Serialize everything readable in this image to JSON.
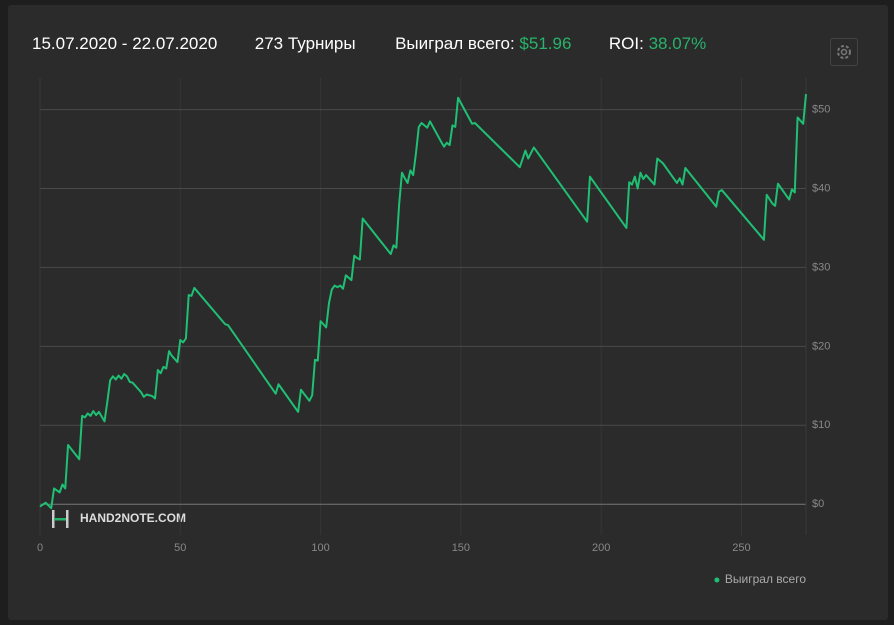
{
  "header": {
    "date_range": "15.07.2020 - 22.07.2020",
    "tournaments": "273 Турниры",
    "won_label": "Выиграл всего:",
    "won_value": "$51.96",
    "roi_label": "ROI:",
    "roi_value": "38.07%"
  },
  "watermark": "HAND2NOTE.COM",
  "chart_data": {
    "type": "line",
    "grid": true,
    "legend": "bottom-right",
    "xlim": [
      0,
      273
    ],
    "xticks": [
      0,
      50,
      100,
      150,
      200,
      250
    ],
    "ylim": [
      -3.9,
      54
    ],
    "yticks": [
      {
        "value": 0,
        "label": "$0"
      },
      {
        "value": 10,
        "label": "$10"
      },
      {
        "value": 20,
        "label": "$20"
      },
      {
        "value": 30,
        "label": "$30"
      },
      {
        "value": 40,
        "label": "$40"
      },
      {
        "value": 50,
        "label": "$50"
      }
    ],
    "x": [
      0,
      2,
      4,
      5,
      7,
      8,
      9,
      10,
      14,
      15,
      16,
      17,
      18,
      19,
      20,
      21,
      23,
      24,
      25,
      26,
      27,
      28,
      29,
      30,
      31,
      32,
      33,
      36,
      37,
      38,
      40,
      41,
      42,
      43,
      44,
      45,
      46,
      47,
      49,
      50,
      51,
      52,
      53,
      54,
      55,
      66,
      67,
      84,
      85,
      92,
      93,
      96,
      97,
      98,
      99,
      100,
      101,
      102,
      103,
      104,
      105,
      106,
      107,
      108,
      109,
      110,
      111,
      112,
      113,
      114,
      115,
      125,
      126,
      127,
      128,
      129,
      130,
      131,
      132,
      133,
      134,
      135,
      136,
      137,
      138,
      139,
      143,
      144,
      145,
      146,
      147,
      148,
      149,
      154,
      155,
      171,
      173,
      174,
      176,
      195,
      196,
      209,
      210,
      211,
      212,
      213,
      214,
      215,
      216,
      219,
      220,
      222,
      227,
      228,
      229,
      230,
      241,
      242,
      243,
      258,
      259,
      261,
      262,
      263,
      267,
      268,
      269,
      270,
      271,
      272,
      273
    ],
    "series": [
      {
        "name": "Выиграл всего",
        "color": "#1fbf74",
        "values": [
          -0.3,
          0.2,
          -0.5,
          2,
          1.5,
          2.5,
          2,
          7.5,
          5.7,
          11.2,
          11,
          11.5,
          11.2,
          11.8,
          11.3,
          11.7,
          10.5,
          13,
          15.7,
          16.2,
          15.8,
          16.3,
          15.9,
          16.5,
          16.2,
          15.5,
          15.4,
          14.2,
          13.6,
          13.9,
          13.7,
          13.4,
          17,
          16.6,
          17.4,
          17.2,
          19.4,
          18.8,
          18,
          20.8,
          20.5,
          21,
          26.5,
          26.4,
          27.4,
          22.8,
          22.7,
          14,
          15.2,
          11.7,
          14.5,
          13.1,
          13.8,
          18.3,
          18.2,
          23.2,
          22.8,
          22.4,
          25.5,
          27.2,
          27.7,
          27.5,
          27.7,
          27.3,
          29,
          28.7,
          28.4,
          31.5,
          31.2,
          31,
          36.2,
          31.7,
          32.8,
          32.5,
          38,
          42,
          41.3,
          40.7,
          42.3,
          41.7,
          44.5,
          47.8,
          48.3,
          48,
          47.7,
          48.5,
          45.9,
          45.3,
          45.8,
          45.5,
          48,
          47.8,
          51.5,
          48.2,
          48.3,
          42.7,
          44.8,
          43.8,
          45.2,
          35.8,
          41.5,
          35,
          40.8,
          40.5,
          41.5,
          40,
          42,
          41.2,
          41.7,
          40.5,
          43.8,
          43.2,
          40.7,
          41.3,
          40.5,
          42.6,
          37.7,
          39.6,
          39.8,
          33.5,
          39.2,
          38.1,
          37.8,
          40.6,
          38.6,
          39.9,
          39.5,
          49,
          48.6,
          48.2,
          51.96
        ]
      }
    ]
  }
}
